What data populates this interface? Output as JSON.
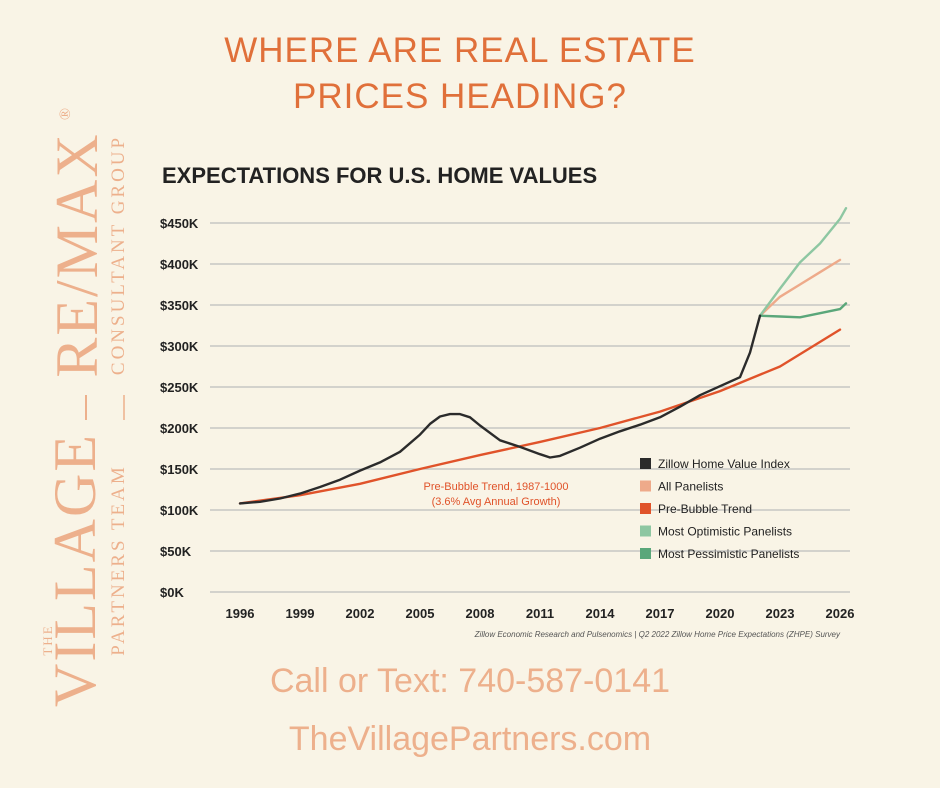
{
  "headline": {
    "line1": "WHERE ARE REAL ESTATE",
    "line2": "PRICES HEADING?"
  },
  "brand": {
    "the": "THE",
    "village": "VILLAGE",
    "partners_team": "PARTNERS TEAM",
    "remax": "RE/MAX",
    "registered": "®",
    "consultant_group": "CONSULTANT GROUP",
    "color": "#edb08c"
  },
  "footer": {
    "phone": "Call or Text: 740-587-0141",
    "website": "TheVillagePartners.com"
  },
  "colors": {
    "background": "#f9f4e6",
    "headline": "#e0703a",
    "footer_text": "#edb08c"
  },
  "chart_data": {
    "type": "line",
    "title": "EXPECTATIONS FOR U.S. HOME VALUES",
    "xlabel": "",
    "ylabel": "",
    "source": "Zillow Economic Research and Pulsenomics | Q2 2022 Zillow Home Price Expectations (ZHPE) Survey",
    "x_ticks": [
      "1996",
      "1999",
      "2002",
      "2005",
      "2008",
      "2011",
      "2014",
      "2017",
      "2020",
      "2023",
      "2026"
    ],
    "y_ticks": [
      "$0K",
      "$50K",
      "$100K",
      "$150K",
      "$200K",
      "$250K",
      "$300K",
      "$350K",
      "$400K",
      "$450K"
    ],
    "xlim": [
      1996,
      2026.5
    ],
    "ylim": [
      0,
      450000
    ],
    "grid": "horizontal",
    "legend_position": "bottom-right",
    "annotation": {
      "line1": "Pre-Bubble Trend, 1987-1000",
      "line2": "(3.6% Avg Annual Growth)",
      "color": "#e0532a"
    },
    "series": [
      {
        "name": "Zillow Home Value Index",
        "color": "#2b2b2b",
        "x": [
          1996,
          1997,
          1998,
          1999,
          2000,
          2001,
          2002,
          2003,
          2004,
          2005,
          2005.5,
          2006,
          2006.5,
          2007,
          2007.5,
          2008,
          2009,
          2010,
          2011,
          2011.5,
          2012,
          2013,
          2014,
          2015,
          2016,
          2017,
          2018,
          2019,
          2020,
          2021,
          2021.5,
          2022
        ],
        "values": [
          108000,
          110000,
          114000,
          120000,
          128000,
          137000,
          148000,
          158000,
          171000,
          192000,
          205000,
          214000,
          217000,
          217000,
          213000,
          203000,
          185000,
          177000,
          168000,
          164000,
          166000,
          176000,
          187000,
          196000,
          204000,
          213000,
          226000,
          240000,
          251000,
          262000,
          292000,
          337000
        ]
      },
      {
        "name": "All Panelists",
        "color": "#eeaa8a",
        "x": [
          2022,
          2023,
          2024,
          2025,
          2026
        ],
        "values": [
          337000,
          360000,
          375000,
          390000,
          405000
        ]
      },
      {
        "name": "Pre-Bubble Trend",
        "color": "#e0532a",
        "x": [
          1996,
          1999,
          2002,
          2005,
          2008,
          2011,
          2014,
          2017,
          2020,
          2023,
          2026
        ],
        "values": [
          108000,
          118000,
          132000,
          150000,
          167000,
          183000,
          200000,
          220000,
          245000,
          275000,
          320000
        ]
      },
      {
        "name": "Most Optimistic Panelists",
        "color": "#8ec7a2",
        "x": [
          2022,
          2023,
          2024,
          2025,
          2026,
          2026.3
        ],
        "values": [
          337000,
          370000,
          402000,
          425000,
          455000,
          468000
        ]
      },
      {
        "name": "Most Pessimistic Panelists",
        "color": "#5aa77a",
        "x": [
          2022,
          2023,
          2024,
          2025,
          2026,
          2026.3
        ],
        "values": [
          337000,
          336000,
          335000,
          340000,
          345000,
          352000
        ]
      }
    ]
  }
}
